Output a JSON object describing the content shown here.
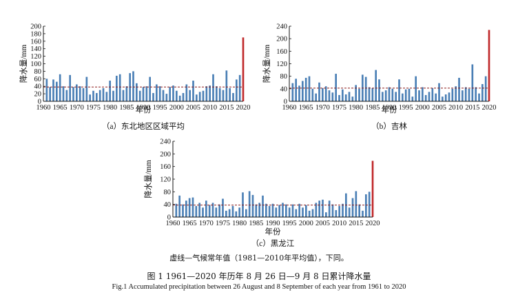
{
  "chart_data": [
    {
      "type": "bar",
      "panel_label": "（a）东北地区区域平均",
      "xlabel": "年份",
      "ylabel": "降水量/mm",
      "x_start": 1961,
      "xlim": [
        1960,
        2020
      ],
      "ylim": [
        0,
        200
      ],
      "yticks": [
        0,
        20,
        40,
        60,
        80,
        100,
        120,
        140,
        160,
        180,
        200
      ],
      "xticks": [
        1960,
        1965,
        1970,
        1975,
        1980,
        1985,
        1990,
        1995,
        2000,
        2005,
        2010,
        2015,
        2020
      ],
      "climate_mean": 38,
      "bar_color": "#4a7fb5",
      "highlight_color": "#c0292b",
      "mean_line_color": "#8b1a1a",
      "values": [
        60,
        38,
        58,
        52,
        72,
        40,
        30,
        70,
        38,
        45,
        40,
        35,
        65,
        18,
        28,
        22,
        30,
        35,
        25,
        55,
        28,
        68,
        72,
        30,
        40,
        75,
        80,
        48,
        28,
        38,
        40,
        65,
        22,
        45,
        40,
        30,
        20,
        38,
        42,
        28,
        15,
        22,
        45,
        30,
        55,
        18,
        25,
        28,
        40,
        42,
        72,
        40,
        35,
        30,
        82,
        35,
        22,
        58,
        70,
        170
      ]
    },
    {
      "type": "bar",
      "panel_label": "（b）吉林",
      "xlabel": "年份",
      "ylabel": "降水量/mm",
      "x_start": 1961,
      "xlim": [
        1960,
        2020
      ],
      "ylim": [
        0,
        240
      ],
      "yticks": [
        0,
        40,
        80,
        120,
        160,
        200,
        240
      ],
      "xticks": [
        1960,
        1965,
        1970,
        1975,
        1980,
        1985,
        1990,
        1995,
        2000,
        2005,
        2010,
        2015,
        2020
      ],
      "climate_mean": 42,
      "bar_color": "#4a7fb5",
      "highlight_color": "#c0292b",
      "mean_line_color": "#8b1a1a",
      "values": [
        58,
        72,
        50,
        65,
        75,
        80,
        40,
        25,
        60,
        42,
        48,
        35,
        28,
        88,
        20,
        38,
        22,
        30,
        15,
        52,
        40,
        85,
        78,
        45,
        42,
        100,
        70,
        30,
        35,
        45,
        40,
        30,
        70,
        25,
        38,
        40,
        15,
        80,
        35,
        45,
        20,
        30,
        42,
        25,
        58,
        15,
        22,
        28,
        40,
        48,
        75,
        35,
        45,
        40,
        118,
        45,
        25,
        55,
        80,
        228
      ]
    },
    {
      "type": "bar",
      "panel_label": "（c）黑龙江",
      "xlabel": "年份",
      "ylabel": "降水量/mm",
      "x_start": 1961,
      "xlim": [
        1960,
        2020
      ],
      "ylim": [
        0,
        240
      ],
      "yticks": [
        0,
        40,
        80,
        120,
        160,
        200,
        240
      ],
      "xticks": [
        1960,
        1965,
        1970,
        1975,
        1980,
        1985,
        1990,
        1995,
        2000,
        2005,
        2010,
        2015,
        2020
      ],
      "climate_mean": 38,
      "bar_color": "#4a7fb5",
      "highlight_color": "#c0292b",
      "mean_line_color": "#8b1a1a",
      "values": [
        42,
        68,
        40,
        52,
        60,
        62,
        35,
        45,
        30,
        52,
        38,
        45,
        30,
        40,
        58,
        20,
        25,
        35,
        18,
        30,
        78,
        25,
        82,
        70,
        40,
        45,
        68,
        42,
        35,
        42,
        30,
        38,
        45,
        40,
        30,
        40,
        25,
        42,
        30,
        38,
        20,
        25,
        45,
        52,
        55,
        15,
        52,
        40,
        22,
        35,
        42,
        75,
        30,
        60,
        82,
        40,
        20,
        72,
        80,
        178
      ]
    }
  ],
  "note": "虚线—气候常年值（1981—2010年平均值），下同。",
  "figure_caption_zh": "图 1   1961—2020 年历年 8 月 26 日—9 月 8 日累计降水量",
  "figure_caption_en": "Fig.1   Accumulated precipitation between 26 August and 8 September of each year from 1961 to 2020"
}
